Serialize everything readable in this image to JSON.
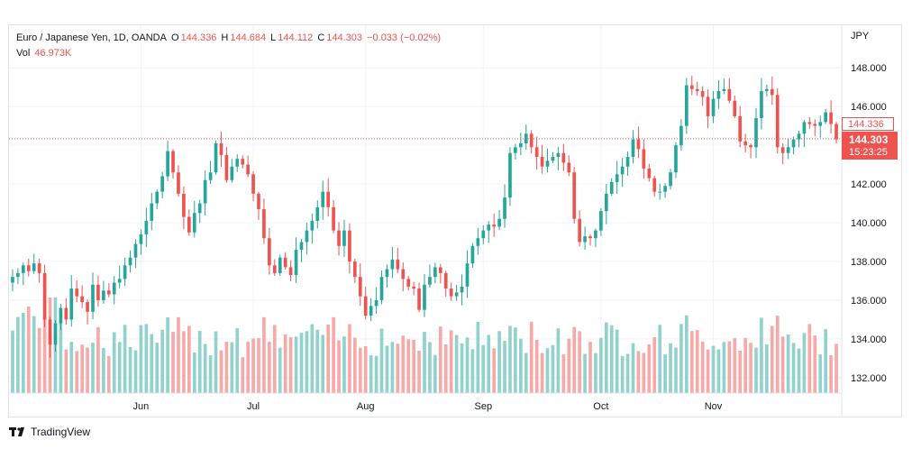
{
  "legend": {
    "title": "Euro / Japanese Yen, 1D, OANDA",
    "open_label": "O",
    "open": "144.336",
    "high_label": "H",
    "high": "144.684",
    "low_label": "L",
    "low": "144.112",
    "close_label": "C",
    "close": "144.303",
    "change": "−0.033 (−0.02%)",
    "vol_label": "Vol",
    "vol": "46.973K"
  },
  "axis": {
    "currency": "JPY"
  },
  "price_tags": {
    "open": "144.336",
    "last": "144.303",
    "countdown": "15:23:25"
  },
  "brand": "TradingView",
  "colors": {
    "up": "#26a69a",
    "down": "#ef5350",
    "vol_up": "#92d2cc",
    "vol_down": "#f7a9a7",
    "grid": "#f0f3fa"
  },
  "chart_data": {
    "type": "candlestick",
    "xlabel": "",
    "ylabel": "",
    "ylim": [
      131.2,
      150.2
    ],
    "y_ticks": [
      "132.000",
      "134.000",
      "136.000",
      "138.000",
      "140.000",
      "142.000",
      "144.000",
      "146.000",
      "148.000"
    ],
    "x_ticks": [
      {
        "label": "Jun",
        "index": 24
      },
      {
        "label": "Jul",
        "index": 45
      },
      {
        "label": "Aug",
        "index": 66
      },
      {
        "label": "Sep",
        "index": 88
      },
      {
        "label": "Oct",
        "index": 110
      },
      {
        "label": "Nov",
        "index": 131
      }
    ],
    "grid": true,
    "open_reference_line": 144.336,
    "close": [
      137.2,
      137.4,
      137.8,
      137.5,
      137.9,
      137.4,
      135.0,
      133.7,
      134.8,
      135.6,
      135.0,
      136.6,
      136.2,
      135.9,
      135.4,
      136.8,
      136.0,
      136.5,
      136.3,
      136.9,
      137.1,
      137.8,
      138.2,
      138.9,
      139.4,
      140.1,
      141.0,
      141.6,
      142.4,
      143.7,
      142.6,
      141.5,
      140.3,
      139.5,
      140.5,
      141.0,
      142.2,
      142.6,
      144.1,
      143.5,
      142.2,
      142.9,
      143.3,
      143.0,
      142.5,
      141.5,
      140.7,
      139.2,
      137.8,
      137.4,
      138.2,
      137.7,
      137.3,
      138.6,
      139.0,
      139.6,
      140.1,
      140.8,
      141.6,
      140.8,
      139.6,
      138.8,
      139.6,
      138.0,
      137.2,
      136.2,
      135.2,
      135.7,
      136.0,
      137.2,
      137.6,
      138.1,
      137.6,
      137.1,
      136.7,
      136.6,
      135.5,
      136.8,
      137.2,
      137.7,
      137.4,
      136.6,
      136.2,
      136.4,
      136.7,
      137.9,
      138.8,
      139.2,
      139.6,
      139.9,
      139.8,
      140.2,
      141.3,
      143.6,
      143.9,
      144.1,
      144.6,
      143.9,
      143.4,
      142.9,
      143.2,
      143.4,
      143.6,
      143.1,
      142.6,
      140.2,
      139.0,
      139.3,
      139.2,
      139.6,
      140.6,
      141.5,
      142.1,
      142.5,
      142.9,
      143.4,
      144.3,
      143.8,
      142.8,
      142.3,
      141.6,
      141.6,
      141.9,
      142.6,
      144.0,
      145.0,
      147.1,
      146.9,
      146.8,
      146.5,
      145.5,
      146.4,
      146.8,
      146.9,
      146.3,
      145.5,
      144.2,
      144.0,
      143.9,
      145.4,
      146.8,
      146.9,
      146.6,
      143.9,
      143.6,
      143.9,
      144.3,
      144.6,
      145.2,
      145.1,
      145.0,
      145.2,
      145.7,
      145.1,
      144.3
    ]
  }
}
